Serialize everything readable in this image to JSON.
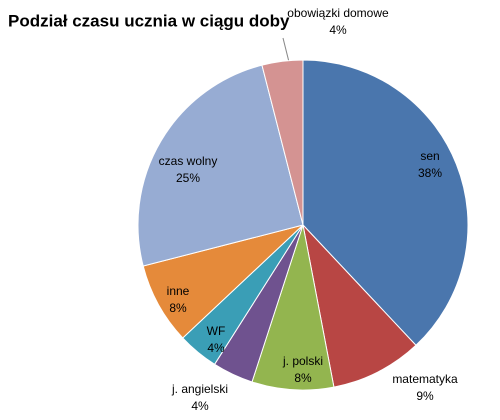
{
  "chart_data": {
    "type": "pie",
    "title": "Podział czasu ucznia w ciągu doby",
    "categories": [
      "sen",
      "matematyka",
      "j. polski",
      "j. angielski",
      "WF",
      "inne",
      "czas wolny",
      "obowiązki domowe"
    ],
    "values": [
      38,
      9,
      8,
      4,
      4,
      8,
      25,
      4
    ],
    "value_labels": [
      "38%",
      "9%",
      "8%",
      "4%",
      "4%",
      "8%",
      "25%",
      "4%"
    ],
    "colors": [
      "#4a76ad",
      "#b84644",
      "#93b54f",
      "#6f528f",
      "#3a9eb6",
      "#e58a3a",
      "#97acd3",
      "#d49392"
    ]
  }
}
